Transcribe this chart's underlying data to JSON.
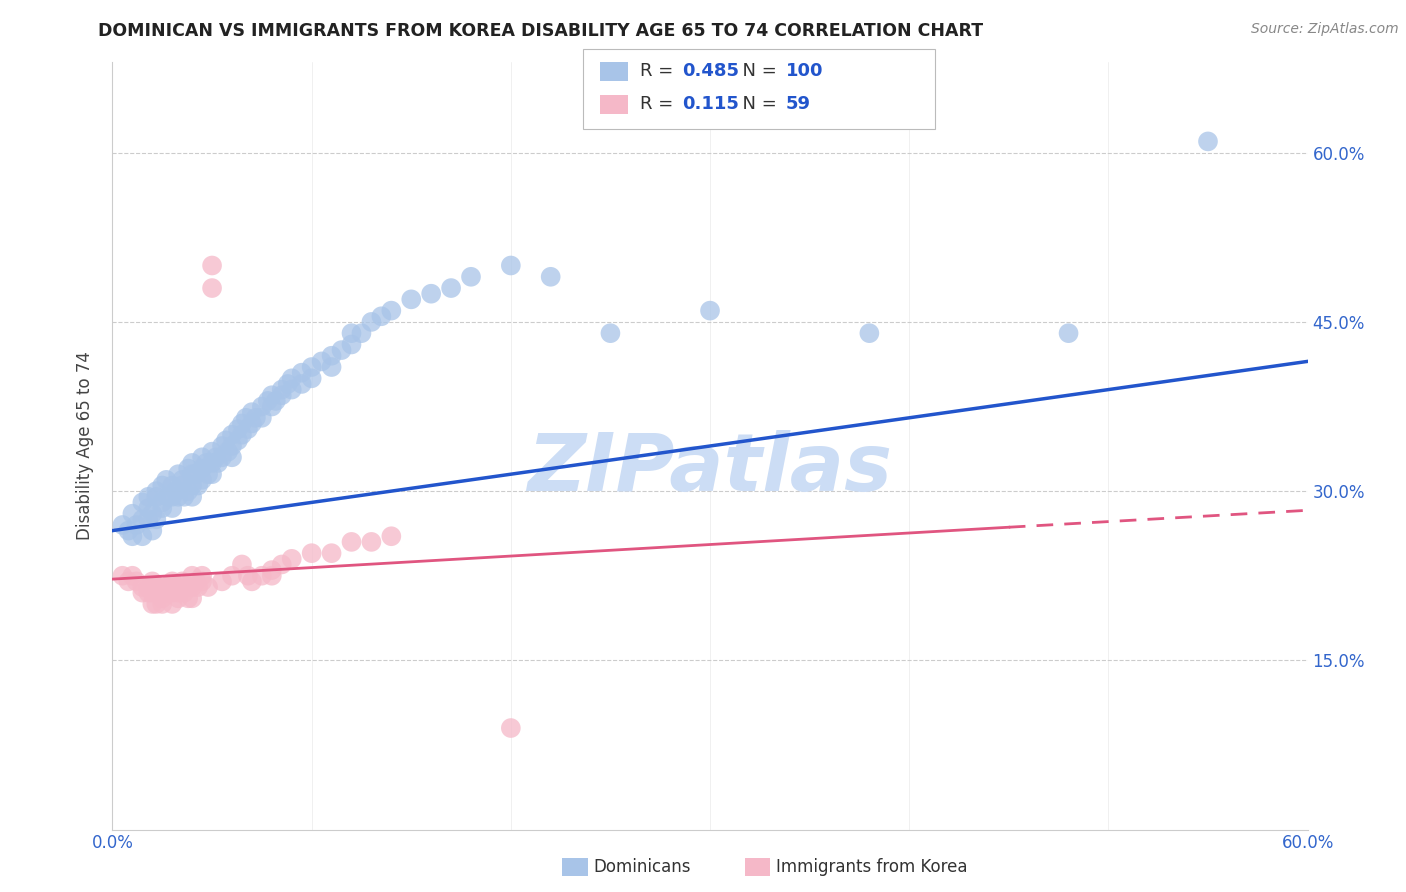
{
  "title": "DOMINICAN VS IMMIGRANTS FROM KOREA DISABILITY AGE 65 TO 74 CORRELATION CHART",
  "source": "Source: ZipAtlas.com",
  "ylabel": "Disability Age 65 to 74",
  "blue_R": 0.485,
  "blue_N": 100,
  "pink_R": 0.115,
  "pink_N": 59,
  "blue_color": "#a8c4e8",
  "pink_color": "#f5b8c8",
  "blue_line_color": "#2255cc",
  "pink_line_color": "#e05580",
  "xlim": [
    0.0,
    0.6
  ],
  "ylim": [
    0.0,
    0.68
  ],
  "ytick_positions": [
    0.15,
    0.3,
    0.45,
    0.6
  ],
  "ytick_labels": [
    "15.0%",
    "30.0%",
    "45.0%",
    "60.0%"
  ],
  "xtick_positions": [
    0.0,
    0.1,
    0.2,
    0.3,
    0.4,
    0.5,
    0.6
  ],
  "xtick_labels": [
    "0.0%",
    "",
    "",
    "",
    "",
    "",
    "60.0%"
  ],
  "blue_scatter": [
    [
      0.005,
      0.27
    ],
    [
      0.008,
      0.265
    ],
    [
      0.01,
      0.28
    ],
    [
      0.01,
      0.26
    ],
    [
      0.012,
      0.27
    ],
    [
      0.015,
      0.275
    ],
    [
      0.015,
      0.29
    ],
    [
      0.015,
      0.26
    ],
    [
      0.018,
      0.285
    ],
    [
      0.018,
      0.275
    ],
    [
      0.018,
      0.295
    ],
    [
      0.02,
      0.265
    ],
    [
      0.02,
      0.28
    ],
    [
      0.022,
      0.295
    ],
    [
      0.022,
      0.3
    ],
    [
      0.022,
      0.275
    ],
    [
      0.025,
      0.29
    ],
    [
      0.025,
      0.305
    ],
    [
      0.025,
      0.285
    ],
    [
      0.027,
      0.31
    ],
    [
      0.028,
      0.295
    ],
    [
      0.03,
      0.305
    ],
    [
      0.03,
      0.295
    ],
    [
      0.03,
      0.285
    ],
    [
      0.032,
      0.3
    ],
    [
      0.033,
      0.315
    ],
    [
      0.033,
      0.295
    ],
    [
      0.035,
      0.31
    ],
    [
      0.035,
      0.305
    ],
    [
      0.036,
      0.295
    ],
    [
      0.038,
      0.32
    ],
    [
      0.038,
      0.3
    ],
    [
      0.04,
      0.325
    ],
    [
      0.04,
      0.315
    ],
    [
      0.04,
      0.305
    ],
    [
      0.04,
      0.295
    ],
    [
      0.042,
      0.315
    ],
    [
      0.043,
      0.305
    ],
    [
      0.045,
      0.33
    ],
    [
      0.045,
      0.32
    ],
    [
      0.045,
      0.31
    ],
    [
      0.047,
      0.325
    ],
    [
      0.048,
      0.315
    ],
    [
      0.05,
      0.335
    ],
    [
      0.05,
      0.325
    ],
    [
      0.05,
      0.315
    ],
    [
      0.052,
      0.33
    ],
    [
      0.053,
      0.325
    ],
    [
      0.055,
      0.34
    ],
    [
      0.055,
      0.33
    ],
    [
      0.057,
      0.345
    ],
    [
      0.058,
      0.335
    ],
    [
      0.06,
      0.35
    ],
    [
      0.06,
      0.34
    ],
    [
      0.06,
      0.33
    ],
    [
      0.063,
      0.355
    ],
    [
      0.063,
      0.345
    ],
    [
      0.065,
      0.36
    ],
    [
      0.065,
      0.35
    ],
    [
      0.067,
      0.365
    ],
    [
      0.068,
      0.355
    ],
    [
      0.07,
      0.37
    ],
    [
      0.07,
      0.36
    ],
    [
      0.072,
      0.365
    ],
    [
      0.075,
      0.375
    ],
    [
      0.075,
      0.365
    ],
    [
      0.078,
      0.38
    ],
    [
      0.08,
      0.385
    ],
    [
      0.08,
      0.375
    ],
    [
      0.082,
      0.38
    ],
    [
      0.085,
      0.39
    ],
    [
      0.085,
      0.385
    ],
    [
      0.088,
      0.395
    ],
    [
      0.09,
      0.4
    ],
    [
      0.09,
      0.39
    ],
    [
      0.095,
      0.405
    ],
    [
      0.095,
      0.395
    ],
    [
      0.1,
      0.41
    ],
    [
      0.1,
      0.4
    ],
    [
      0.105,
      0.415
    ],
    [
      0.11,
      0.42
    ],
    [
      0.11,
      0.41
    ],
    [
      0.115,
      0.425
    ],
    [
      0.12,
      0.44
    ],
    [
      0.12,
      0.43
    ],
    [
      0.125,
      0.44
    ],
    [
      0.13,
      0.45
    ],
    [
      0.135,
      0.455
    ],
    [
      0.14,
      0.46
    ],
    [
      0.15,
      0.47
    ],
    [
      0.16,
      0.475
    ],
    [
      0.17,
      0.48
    ],
    [
      0.18,
      0.49
    ],
    [
      0.2,
      0.5
    ],
    [
      0.22,
      0.49
    ],
    [
      0.25,
      0.44
    ],
    [
      0.3,
      0.46
    ],
    [
      0.38,
      0.44
    ],
    [
      0.48,
      0.44
    ],
    [
      0.55,
      0.61
    ]
  ],
  "pink_scatter": [
    [
      0.005,
      0.225
    ],
    [
      0.008,
      0.22
    ],
    [
      0.01,
      0.225
    ],
    [
      0.012,
      0.22
    ],
    [
      0.015,
      0.215
    ],
    [
      0.015,
      0.21
    ],
    [
      0.018,
      0.215
    ],
    [
      0.018,
      0.21
    ],
    [
      0.02,
      0.22
    ],
    [
      0.02,
      0.215
    ],
    [
      0.02,
      0.21
    ],
    [
      0.02,
      0.2
    ],
    [
      0.022,
      0.215
    ],
    [
      0.022,
      0.21
    ],
    [
      0.022,
      0.2
    ],
    [
      0.024,
      0.215
    ],
    [
      0.025,
      0.21
    ],
    [
      0.025,
      0.205
    ],
    [
      0.025,
      0.2
    ],
    [
      0.027,
      0.215
    ],
    [
      0.028,
      0.21
    ],
    [
      0.03,
      0.22
    ],
    [
      0.03,
      0.215
    ],
    [
      0.03,
      0.21
    ],
    [
      0.03,
      0.2
    ],
    [
      0.032,
      0.215
    ],
    [
      0.033,
      0.21
    ],
    [
      0.033,
      0.205
    ],
    [
      0.035,
      0.22
    ],
    [
      0.035,
      0.215
    ],
    [
      0.036,
      0.21
    ],
    [
      0.038,
      0.215
    ],
    [
      0.038,
      0.205
    ],
    [
      0.04,
      0.225
    ],
    [
      0.04,
      0.215
    ],
    [
      0.04,
      0.205
    ],
    [
      0.042,
      0.22
    ],
    [
      0.043,
      0.215
    ],
    [
      0.045,
      0.225
    ],
    [
      0.045,
      0.22
    ],
    [
      0.048,
      0.215
    ],
    [
      0.05,
      0.5
    ],
    [
      0.05,
      0.48
    ],
    [
      0.055,
      0.22
    ],
    [
      0.06,
      0.225
    ],
    [
      0.065,
      0.235
    ],
    [
      0.068,
      0.225
    ],
    [
      0.07,
      0.22
    ],
    [
      0.075,
      0.225
    ],
    [
      0.08,
      0.23
    ],
    [
      0.08,
      0.225
    ],
    [
      0.085,
      0.235
    ],
    [
      0.09,
      0.24
    ],
    [
      0.1,
      0.245
    ],
    [
      0.11,
      0.245
    ],
    [
      0.12,
      0.255
    ],
    [
      0.13,
      0.255
    ],
    [
      0.14,
      0.26
    ],
    [
      0.2,
      0.09
    ]
  ],
  "watermark": "ZIPatlas",
  "watermark_color": "#ccddf5",
  "background_color": "#ffffff",
  "grid_color": "#cccccc",
  "title_color": "#222222",
  "axis_label_color": "#444444",
  "tick_label_color": "#3366cc",
  "source_color": "#888888"
}
